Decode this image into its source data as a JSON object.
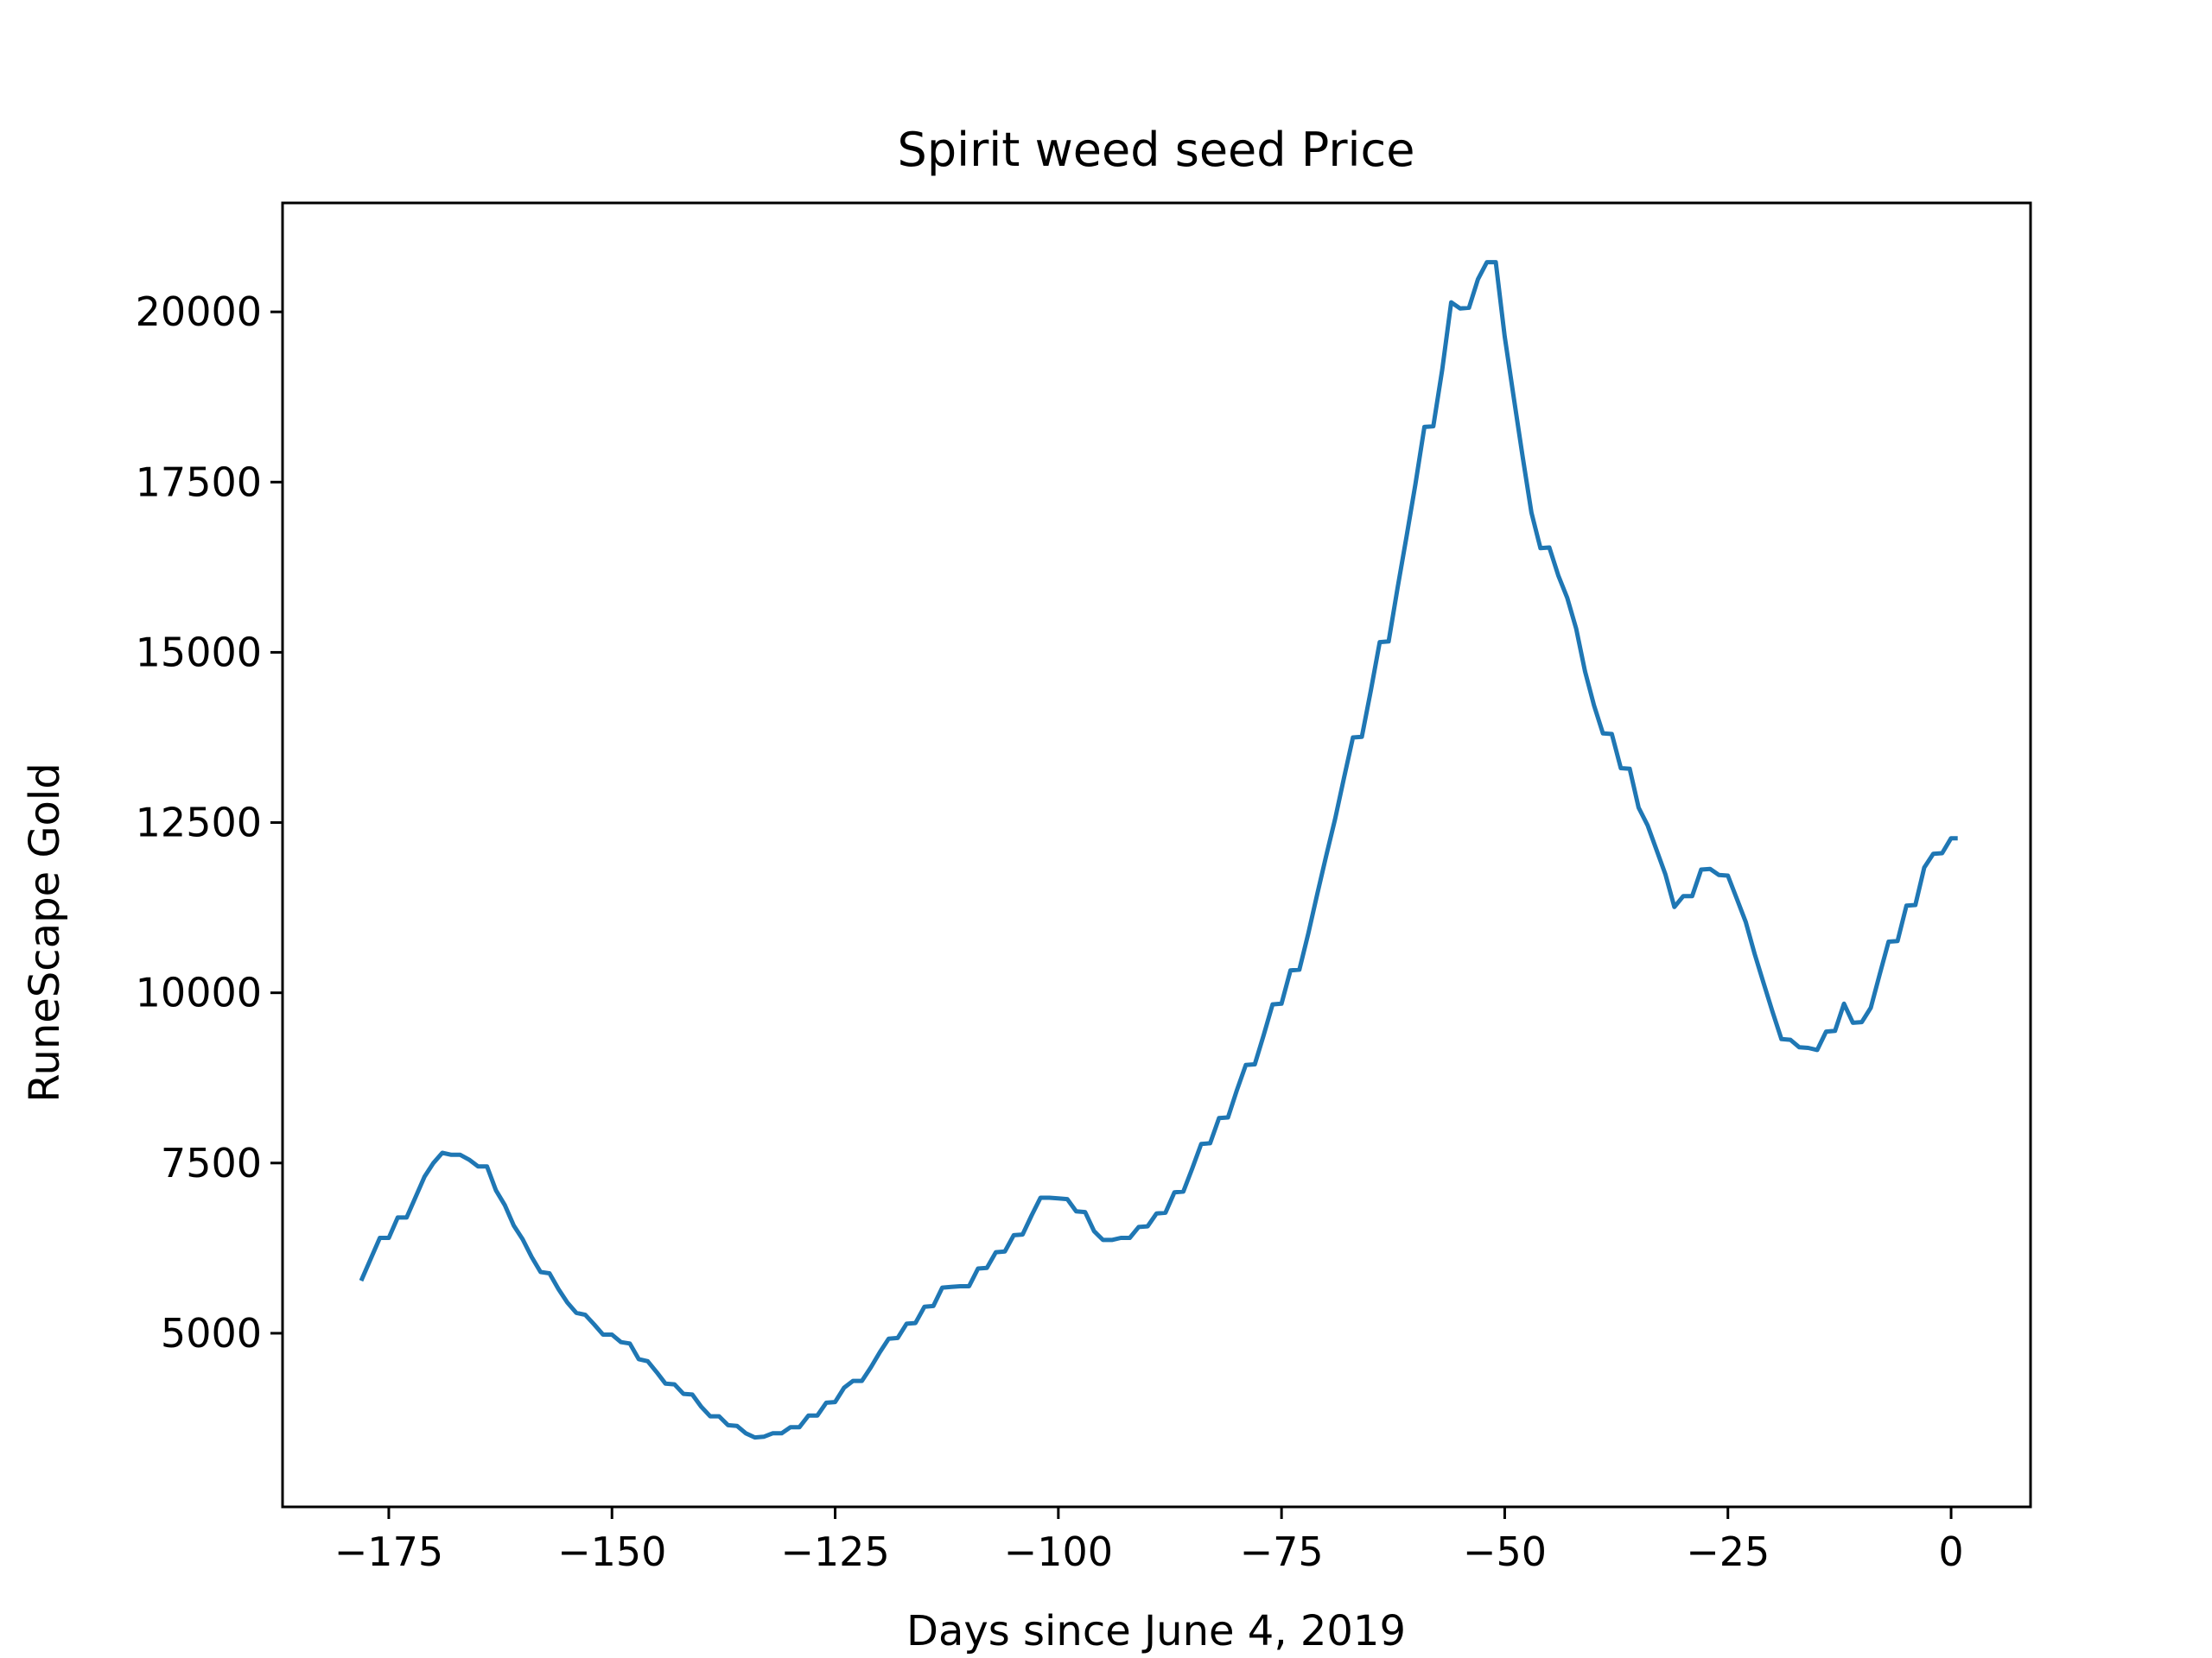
{
  "chart_data": {
    "type": "line",
    "title": "Spirit weed seed Price",
    "xlabel": "Days since June 4, 2019",
    "ylabel": "RuneScape Gold",
    "xlim": [
      -186.9,
      8.9
    ],
    "ylim": [
      2450,
      21600
    ],
    "xticks": [
      -175,
      -150,
      -125,
      -100,
      -75,
      -50,
      -25,
      0
    ],
    "xtick_labels": [
      "−175",
      "−150",
      "−125",
      "−100",
      "−75",
      "−50",
      "−25",
      "0"
    ],
    "yticks": [
      5000,
      7500,
      10000,
      12500,
      15000,
      17500,
      20000
    ],
    "ytick_labels": [
      "5000",
      "7500",
      "10000",
      "12500",
      "15000",
      "17500",
      "20000"
    ],
    "grid": false,
    "series": [
      {
        "color": "#1f77b4",
        "points": [
          [
            -178,
            5800
          ],
          [
            -176,
            6400
          ],
          [
            -175,
            6400
          ],
          [
            -174,
            6700
          ],
          [
            -173,
            6700
          ],
          [
            -171,
            7300
          ],
          [
            -170,
            7500
          ],
          [
            -169,
            7650
          ],
          [
            -168,
            7620
          ],
          [
            -167,
            7620
          ],
          [
            -166,
            7550
          ],
          [
            -165,
            7450
          ],
          [
            -164,
            7450
          ],
          [
            -163,
            7100
          ],
          [
            -162,
            6880
          ],
          [
            -161,
            6580
          ],
          [
            -160,
            6380
          ],
          [
            -159,
            6120
          ],
          [
            -158,
            5900
          ],
          [
            -157,
            5880
          ],
          [
            -156,
            5650
          ],
          [
            -155,
            5450
          ],
          [
            -154,
            5300
          ],
          [
            -153,
            5270
          ],
          [
            -152,
            5130
          ],
          [
            -151,
            4980
          ],
          [
            -150,
            4980
          ],
          [
            -149,
            4870
          ],
          [
            -148,
            4850
          ],
          [
            -147,
            4620
          ],
          [
            -146,
            4590
          ],
          [
            -145,
            4430
          ],
          [
            -144,
            4260
          ],
          [
            -143,
            4250
          ],
          [
            -142,
            4110
          ],
          [
            -141,
            4100
          ],
          [
            -140,
            3920
          ],
          [
            -139,
            3780
          ],
          [
            -138,
            3780
          ],
          [
            -137,
            3650
          ],
          [
            -136,
            3640
          ],
          [
            -135,
            3530
          ],
          [
            -134,
            3470
          ],
          [
            -133,
            3480
          ],
          [
            -132,
            3530
          ],
          [
            -131,
            3530
          ],
          [
            -130,
            3620
          ],
          [
            -129,
            3620
          ],
          [
            -128,
            3790
          ],
          [
            -127,
            3790
          ],
          [
            -126,
            3980
          ],
          [
            -125,
            3990
          ],
          [
            -124,
            4200
          ],
          [
            -123,
            4300
          ],
          [
            -122,
            4300
          ],
          [
            -121,
            4500
          ],
          [
            -120,
            4720
          ],
          [
            -119,
            4920
          ],
          [
            -118,
            4930
          ],
          [
            -117,
            5140
          ],
          [
            -116,
            5150
          ],
          [
            -115,
            5390
          ],
          [
            -114,
            5400
          ],
          [
            -113,
            5670
          ],
          [
            -112,
            5680
          ],
          [
            -111,
            5690
          ],
          [
            -110,
            5690
          ],
          [
            -109,
            5950
          ],
          [
            -108,
            5960
          ],
          [
            -107,
            6190
          ],
          [
            -106,
            6200
          ],
          [
            -105,
            6440
          ],
          [
            -104,
            6450
          ],
          [
            -103,
            6730
          ],
          [
            -102,
            6990
          ],
          [
            -101,
            6990
          ],
          [
            -100,
            6980
          ],
          [
            -99,
            6970
          ],
          [
            -98,
            6790
          ],
          [
            -97,
            6780
          ],
          [
            -96,
            6500
          ],
          [
            -95,
            6370
          ],
          [
            -94,
            6370
          ],
          [
            -93,
            6400
          ],
          [
            -92,
            6400
          ],
          [
            -91,
            6560
          ],
          [
            -90,
            6570
          ],
          [
            -89,
            6760
          ],
          [
            -88,
            6770
          ],
          [
            -87,
            7070
          ],
          [
            -86,
            7080
          ],
          [
            -85,
            7420
          ],
          [
            -84,
            7780
          ],
          [
            -83,
            7790
          ],
          [
            -82,
            8160
          ],
          [
            -81,
            8170
          ],
          [
            -80,
            8570
          ],
          [
            -79,
            8940
          ],
          [
            -78,
            8950
          ],
          [
            -77,
            9380
          ],
          [
            -76,
            9830
          ],
          [
            -75,
            9840
          ],
          [
            -74,
            10330
          ],
          [
            -73,
            10340
          ],
          [
            -72,
            10870
          ],
          [
            -71,
            11450
          ],
          [
            -70,
            12010
          ],
          [
            -69,
            12550
          ],
          [
            -68,
            13160
          ],
          [
            -67,
            13750
          ],
          [
            -66,
            13760
          ],
          [
            -65,
            14440
          ],
          [
            -64,
            15150
          ],
          [
            -63,
            15160
          ],
          [
            -62,
            15950
          ],
          [
            -61,
            16700
          ],
          [
            -60,
            17470
          ],
          [
            -59,
            18310
          ],
          [
            -58,
            18320
          ],
          [
            -57,
            19150
          ],
          [
            -56,
            20140
          ],
          [
            -55,
            20050
          ],
          [
            -54,
            20060
          ],
          [
            -53,
            20480
          ],
          [
            -52,
            20730
          ],
          [
            -51,
            20730
          ],
          [
            -50,
            19640
          ],
          [
            -49,
            18750
          ],
          [
            -48,
            17880
          ],
          [
            -47,
            17050
          ],
          [
            -46,
            16530
          ],
          [
            -45,
            16540
          ],
          [
            -44,
            16130
          ],
          [
            -43,
            15800
          ],
          [
            -42,
            15350
          ],
          [
            -41,
            14720
          ],
          [
            -40,
            14220
          ],
          [
            -39,
            13810
          ],
          [
            -38,
            13800
          ],
          [
            -37,
            13300
          ],
          [
            -36,
            13290
          ],
          [
            -35,
            12720
          ],
          [
            -34,
            12460
          ],
          [
            -33,
            12100
          ],
          [
            -32,
            11740
          ],
          [
            -31,
            11260
          ],
          [
            -30,
            11420
          ],
          [
            -29,
            11420
          ],
          [
            -28,
            11810
          ],
          [
            -27,
            11820
          ],
          [
            -26,
            11730
          ],
          [
            -25,
            11720
          ],
          [
            -24,
            11380
          ],
          [
            -23,
            11040
          ],
          [
            -22,
            10570
          ],
          [
            -21,
            10140
          ],
          [
            -20,
            9720
          ],
          [
            -19,
            9320
          ],
          [
            -18,
            9310
          ],
          [
            -17,
            9200
          ],
          [
            -16,
            9190
          ],
          [
            -15,
            9160
          ],
          [
            -14,
            9430
          ],
          [
            -13,
            9440
          ],
          [
            -12,
            9840
          ],
          [
            -11,
            9560
          ],
          [
            -10,
            9570
          ],
          [
            -9,
            9780
          ],
          [
            -8,
            10270
          ],
          [
            -7,
            10750
          ],
          [
            -6,
            10760
          ],
          [
            -5,
            11280
          ],
          [
            -4,
            11290
          ],
          [
            -3,
            11840
          ],
          [
            -2,
            12040
          ],
          [
            -1,
            12050
          ],
          [
            0,
            12270
          ],
          [
            0.5,
            12270
          ]
        ]
      }
    ]
  }
}
